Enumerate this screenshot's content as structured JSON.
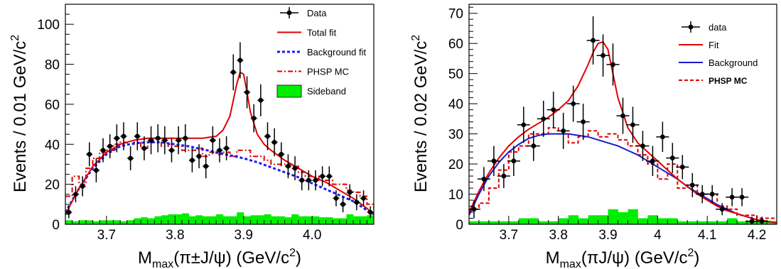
{
  "chart_data": [
    {
      "type": "scatter",
      "xlabel": "M_max(π±J/ψ) (GeV/c²)",
      "xlabel_main": "M",
      "xlabel_sub": "max",
      "xlabel_rest": "(π±J/ψ) (GeV/c",
      "xlabel_sup": "2",
      "xlabel_end": ")",
      "ylabel": "Events / 0.01 GeV/c²",
      "ylabel_main": "Events / 0.01 GeV/c",
      "ylabel_sup": "2",
      "xlim": [
        3.64,
        4.09
      ],
      "ylim": [
        0,
        110
      ],
      "xticks": [
        {
          "v": 3.7,
          "label": "3.7"
        },
        {
          "v": 3.8,
          "label": "3.8"
        },
        {
          "v": 3.9,
          "label": "3.9"
        },
        {
          "v": 4.0,
          "label": "4.0"
        }
      ],
      "yticks": [
        {
          "v": 0,
          "label": "0"
        },
        {
          "v": 20,
          "label": "20"
        },
        {
          "v": 40,
          "label": "40"
        },
        {
          "v": 60,
          "label": "60"
        },
        {
          "v": 80,
          "label": "80"
        },
        {
          "v": 100,
          "label": "100"
        }
      ],
      "legend": {
        "position": "top-right",
        "entries": [
          {
            "kind": "data",
            "label": "Data"
          },
          {
            "kind": "total",
            "label": "Total fit"
          },
          {
            "kind": "background",
            "label": "Background fit"
          },
          {
            "kind": "phsp",
            "label": "PHSP MC"
          },
          {
            "kind": "sideband",
            "label": "Sideband"
          }
        ]
      },
      "colors": {
        "data": "#000000",
        "total": "#e00000",
        "background": "#1a1aff",
        "phsp": "#e00000",
        "sideband": "#00ee00"
      },
      "data_points": [
        {
          "x": 3.645,
          "y": 6,
          "err": 3
        },
        {
          "x": 3.655,
          "y": 15,
          "err": 4
        },
        {
          "x": 3.665,
          "y": 19,
          "err": 5
        },
        {
          "x": 3.675,
          "y": 35,
          "err": 6
        },
        {
          "x": 3.685,
          "y": 27,
          "err": 6
        },
        {
          "x": 3.695,
          "y": 37,
          "err": 6
        },
        {
          "x": 3.705,
          "y": 39,
          "err": 6
        },
        {
          "x": 3.715,
          "y": 43,
          "err": 7
        },
        {
          "x": 3.725,
          "y": 44,
          "err": 7
        },
        {
          "x": 3.735,
          "y": 33,
          "err": 6
        },
        {
          "x": 3.745,
          "y": 44,
          "err": 7
        },
        {
          "x": 3.755,
          "y": 38,
          "err": 6
        },
        {
          "x": 3.765,
          "y": 42,
          "err": 7
        },
        {
          "x": 3.775,
          "y": 43,
          "err": 7
        },
        {
          "x": 3.785,
          "y": 42,
          "err": 7
        },
        {
          "x": 3.795,
          "y": 37,
          "err": 6
        },
        {
          "x": 3.805,
          "y": 42,
          "err": 7
        },
        {
          "x": 3.815,
          "y": 43,
          "err": 7
        },
        {
          "x": 3.825,
          "y": 32,
          "err": 6
        },
        {
          "x": 3.835,
          "y": 34,
          "err": 6
        },
        {
          "x": 3.845,
          "y": 29,
          "err": 6
        },
        {
          "x": 3.855,
          "y": 42,
          "err": 7
        },
        {
          "x": 3.865,
          "y": 37,
          "err": 6
        },
        {
          "x": 3.875,
          "y": 38,
          "err": 6
        },
        {
          "x": 3.885,
          "y": 76,
          "err": 9
        },
        {
          "x": 3.895,
          "y": 82,
          "err": 9
        },
        {
          "x": 3.905,
          "y": 66,
          "err": 8
        },
        {
          "x": 3.915,
          "y": 53,
          "err": 7
        },
        {
          "x": 3.925,
          "y": 62,
          "err": 8
        },
        {
          "x": 3.935,
          "y": 44,
          "err": 7
        },
        {
          "x": 3.945,
          "y": 41,
          "err": 7
        },
        {
          "x": 3.955,
          "y": 35,
          "err": 6
        },
        {
          "x": 3.965,
          "y": 29,
          "err": 6
        },
        {
          "x": 3.975,
          "y": 28,
          "err": 6
        },
        {
          "x": 3.985,
          "y": 22,
          "err": 5
        },
        {
          "x": 3.995,
          "y": 22,
          "err": 5
        },
        {
          "x": 4.005,
          "y": 22,
          "err": 5
        },
        {
          "x": 4.015,
          "y": 24,
          "err": 5
        },
        {
          "x": 4.025,
          "y": 24,
          "err": 5
        },
        {
          "x": 4.035,
          "y": 13,
          "err": 4
        },
        {
          "x": 4.045,
          "y": 10,
          "err": 4
        },
        {
          "x": 4.055,
          "y": 16,
          "err": 4
        },
        {
          "x": 4.065,
          "y": 11,
          "err": 4
        },
        {
          "x": 4.075,
          "y": 13,
          "err": 4
        },
        {
          "x": 4.085,
          "y": 6,
          "err": 3
        }
      ],
      "total_fit": {
        "x": [
          3.64,
          3.66,
          3.68,
          3.7,
          3.72,
          3.74,
          3.76,
          3.78,
          3.8,
          3.82,
          3.84,
          3.86,
          3.87,
          3.88,
          3.885,
          3.89,
          3.895,
          3.9,
          3.905,
          3.91,
          3.92,
          3.93,
          3.94,
          3.96,
          3.98,
          4.0,
          4.02,
          4.04,
          4.06,
          4.08,
          4.09
        ],
        "y": [
          5,
          18,
          29,
          36,
          40,
          42,
          43,
          43,
          43,
          43,
          43,
          44,
          47,
          54,
          62,
          70,
          76,
          75,
          66,
          56,
          45,
          40,
          37,
          32,
          28,
          24,
          21,
          17,
          13,
          8,
          5
        ]
      },
      "background_fit": {
        "x": [
          3.64,
          3.66,
          3.68,
          3.7,
          3.72,
          3.74,
          3.76,
          3.78,
          3.8,
          3.82,
          3.84,
          3.86,
          3.88,
          3.9,
          3.92,
          3.94,
          3.96,
          3.98,
          4.0,
          4.02,
          4.04,
          4.06,
          4.08,
          4.09
        ],
        "y": [
          6,
          18,
          28,
          35,
          39,
          40.5,
          41,
          41,
          40,
          39,
          37.5,
          36,
          34.5,
          33,
          31,
          28.5,
          26,
          23.5,
          20.5,
          17.5,
          14.5,
          11.5,
          7,
          5
        ]
      },
      "phsp_mc": {
        "x": [
          3.64,
          3.65,
          3.66,
          3.67,
          3.68,
          3.69,
          3.7,
          3.71,
          3.72,
          3.73,
          3.74,
          3.75,
          3.76,
          3.77,
          3.78,
          3.79,
          3.8,
          3.81,
          3.82,
          3.83,
          3.84,
          3.85,
          3.86,
          3.87,
          3.88,
          3.89,
          3.9,
          3.91,
          3.92,
          3.93,
          3.94,
          3.95,
          3.96,
          3.97,
          3.98,
          3.99,
          4.0,
          4.01,
          4.02,
          4.03,
          4.04,
          4.05,
          4.06,
          4.07,
          4.08,
          4.09
        ],
        "y": [
          14,
          24,
          20,
          28,
          33,
          36,
          37,
          40,
          41,
          40,
          41,
          38,
          41,
          41,
          39,
          40,
          39,
          37,
          37,
          38,
          34,
          36,
          35,
          36,
          34,
          37,
          37,
          34,
          34,
          32,
          30,
          30,
          30,
          29,
          26,
          24,
          24,
          22,
          22,
          20,
          20,
          17,
          16,
          14,
          10,
          8
        ]
      },
      "sideband": {
        "x0": 3.64,
        "bin": 0.01,
        "values": [
          2,
          1.5,
          2,
          2,
          1.5,
          2,
          2,
          2,
          1.5,
          2,
          3,
          3.5,
          3,
          4,
          4.5,
          5,
          5,
          5.5,
          4,
          4.5,
          4,
          4,
          5,
          4,
          4,
          6,
          4,
          4.5,
          4.5,
          5,
          4,
          4,
          3.5,
          5,
          4,
          4,
          4,
          3.5,
          3.5,
          3,
          3,
          5,
          4,
          4,
          4.5
        ]
      }
    },
    {
      "type": "scatter",
      "xlabel": "M_max(πJ/ψ) (GeV/c²)",
      "xlabel_main": "M",
      "xlabel_sub": "max",
      "xlabel_rest": "(πJ/ψ) (GeV/c",
      "xlabel_sup": "2",
      "xlabel_end": ")",
      "ylabel": "Events / 0.02 GeV/c²",
      "ylabel_main": "Events / 0.02 GeV/c",
      "ylabel_sup": "2",
      "xlim": [
        3.62,
        4.24
      ],
      "ylim": [
        0,
        73
      ],
      "xticks": [
        {
          "v": 3.7,
          "label": "3.7"
        },
        {
          "v": 3.8,
          "label": "3.8"
        },
        {
          "v": 3.9,
          "label": "3.9"
        },
        {
          "v": 4.0,
          "label": "4"
        },
        {
          "v": 4.1,
          "label": "4.1"
        },
        {
          "v": 4.2,
          "label": "4.2"
        }
      ],
      "yticks": [
        {
          "v": 0,
          "label": "0"
        },
        {
          "v": 10,
          "label": "10"
        },
        {
          "v": 20,
          "label": "20"
        },
        {
          "v": 30,
          "label": "30"
        },
        {
          "v": 40,
          "label": "40"
        },
        {
          "v": 50,
          "label": "50"
        },
        {
          "v": 60,
          "label": "60"
        },
        {
          "v": 70,
          "label": "70"
        }
      ],
      "legend": {
        "position": "top-right",
        "entries": [
          {
            "kind": "data",
            "label": "data"
          },
          {
            "kind": "total",
            "label": "Fit"
          },
          {
            "kind": "background",
            "label": "Background"
          },
          {
            "kind": "phsp",
            "label": "PHSP MC"
          }
        ]
      },
      "colors": {
        "data": "#000000",
        "total": "#e00000",
        "background": "#1a1acc",
        "phsp": "#e00000",
        "sideband": "#00ee00"
      },
      "data_points": [
        {
          "x": 3.63,
          "y": 5,
          "err": 3
        },
        {
          "x": 3.65,
          "y": 15,
          "err": 4
        },
        {
          "x": 3.67,
          "y": 21,
          "err": 5
        },
        {
          "x": 3.69,
          "y": 16,
          "err": 4
        },
        {
          "x": 3.71,
          "y": 21,
          "err": 5
        },
        {
          "x": 3.73,
          "y": 33,
          "err": 6
        },
        {
          "x": 3.75,
          "y": 26,
          "err": 5
        },
        {
          "x": 3.77,
          "y": 35,
          "err": 6
        },
        {
          "x": 3.79,
          "y": 38,
          "err": 6
        },
        {
          "x": 3.81,
          "y": 31,
          "err": 6
        },
        {
          "x": 3.83,
          "y": 40,
          "err": 6
        },
        {
          "x": 3.85,
          "y": 34,
          "err": 6
        },
        {
          "x": 3.87,
          "y": 61,
          "err": 8
        },
        {
          "x": 3.89,
          "y": 56,
          "err": 7
        },
        {
          "x": 3.91,
          "y": 53,
          "err": 7
        },
        {
          "x": 3.93,
          "y": 36,
          "err": 6
        },
        {
          "x": 3.95,
          "y": 33,
          "err": 6
        },
        {
          "x": 3.97,
          "y": 26,
          "err": 5
        },
        {
          "x": 3.99,
          "y": 21,
          "err": 5
        },
        {
          "x": 4.01,
          "y": 29,
          "err": 5
        },
        {
          "x": 4.03,
          "y": 22,
          "err": 5
        },
        {
          "x": 4.05,
          "y": 19,
          "err": 4
        },
        {
          "x": 4.07,
          "y": 13,
          "err": 4
        },
        {
          "x": 4.09,
          "y": 10,
          "err": 3
        },
        {
          "x": 4.11,
          "y": 10,
          "err": 3
        },
        {
          "x": 4.13,
          "y": 5,
          "err": 2
        },
        {
          "x": 4.15,
          "y": 9,
          "err": 3
        },
        {
          "x": 4.17,
          "y": 9,
          "err": 3
        },
        {
          "x": 4.19,
          "y": 1,
          "err": 1.5
        },
        {
          "x": 4.21,
          "y": 1,
          "err": 1.5
        }
      ],
      "total_fit": {
        "x": [
          3.62,
          3.64,
          3.66,
          3.68,
          3.7,
          3.72,
          3.74,
          3.76,
          3.78,
          3.8,
          3.82,
          3.84,
          3.86,
          3.87,
          3.88,
          3.89,
          3.9,
          3.91,
          3.92,
          3.94,
          3.96,
          3.98,
          4.0,
          4.02,
          4.04,
          4.06,
          4.08,
          4.1,
          4.12,
          4.14,
          4.16,
          4.18,
          4.2,
          4.22,
          4.24
        ],
        "y": [
          4,
          11,
          17,
          22,
          26,
          29,
          31.5,
          33.5,
          35.5,
          38,
          41,
          46,
          53,
          57,
          60,
          60.5,
          58,
          50,
          42,
          32,
          27,
          24,
          21,
          18,
          15,
          12.5,
          10,
          8,
          6,
          4.5,
          3.5,
          2.5,
          1.5,
          1,
          0.5
        ]
      },
      "background_fit": {
        "x": [
          3.62,
          3.64,
          3.66,
          3.68,
          3.7,
          3.72,
          3.74,
          3.76,
          3.78,
          3.8,
          3.82,
          3.84,
          3.86,
          3.88,
          3.9,
          3.92,
          3.94,
          3.96,
          3.98,
          4.0,
          4.02,
          4.04,
          4.06,
          4.08,
          4.1,
          4.12,
          4.14,
          4.16,
          4.18,
          4.2,
          4.22,
          4.24
        ],
        "y": [
          3,
          10,
          16,
          20.5,
          24,
          26.5,
          28.5,
          29.5,
          30,
          30,
          30,
          29.5,
          29,
          28,
          27,
          26,
          24.5,
          23,
          21,
          19,
          17,
          15,
          12.5,
          10.5,
          8.5,
          6.5,
          5,
          3.5,
          2.5,
          1.5,
          1,
          0.5
        ]
      },
      "phsp_mc": {
        "x": [
          3.62,
          3.64,
          3.66,
          3.68,
          3.7,
          3.72,
          3.74,
          3.76,
          3.78,
          3.8,
          3.82,
          3.84,
          3.86,
          3.88,
          3.9,
          3.92,
          3.94,
          3.96,
          3.98,
          4.0,
          4.02,
          4.04,
          4.06,
          4.08,
          4.1,
          4.12,
          4.14,
          4.16,
          4.18,
          4.2,
          4.22,
          4.24
        ],
        "y": [
          5,
          7,
          12,
          18,
          24,
          26,
          30,
          30,
          32,
          30,
          27,
          29,
          31,
          29,
          30,
          28,
          26,
          23,
          20,
          15,
          20,
          12,
          13,
          10,
          10,
          6,
          5,
          3,
          3,
          2,
          2,
          2
        ]
      },
      "sideband": {
        "x0": 3.62,
        "bin": 0.02,
        "values": [
          1,
          1,
          1,
          1,
          1,
          2,
          2,
          1,
          1,
          2,
          3,
          2,
          3,
          3,
          5,
          4,
          5,
          2,
          3,
          2,
          2,
          1,
          1,
          1,
          1,
          1,
          2,
          1,
          1,
          1,
          1
        ]
      }
    }
  ]
}
